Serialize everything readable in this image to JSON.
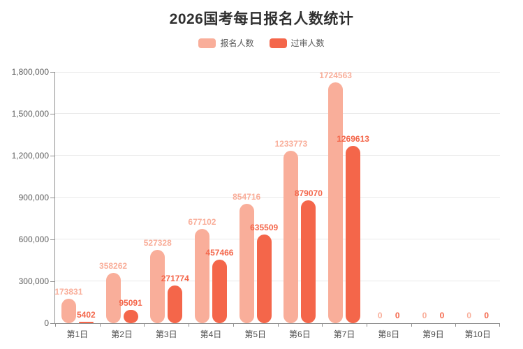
{
  "title": "2026国考每日报名人数统计",
  "colors": {
    "background": "#ffffff",
    "title_text": "#2f2f2f",
    "axis_line": "#909090",
    "grid_line": "#e9e9e9",
    "axis_text": "#5c5c5c",
    "xaxis_text": "#4d4d4d",
    "series_registered": "#f9ae9a",
    "series_approved": "#f4664a"
  },
  "chart_data": {
    "type": "bar",
    "title": "2026国考每日报名人数统计",
    "xlabel": "",
    "ylabel": "",
    "grid": true,
    "legend_position": "top",
    "categories": [
      "第1日",
      "第2日",
      "第3日",
      "第4日",
      "第5日",
      "第6日",
      "第7日",
      "第8日",
      "第9日",
      "第10日"
    ],
    "series": [
      {
        "name": "报名人数",
        "color": "#f9ae9a",
        "values": [
          173831,
          358262,
          527328,
          677102,
          854716,
          1233773,
          1724563,
          0,
          0,
          0
        ]
      },
      {
        "name": "过审人数",
        "color": "#f4664a",
        "values": [
          5402,
          95091,
          271774,
          457466,
          635509,
          879070,
          1269613,
          0,
          0,
          0
        ]
      }
    ],
    "ylim": [
      0,
      1800000
    ],
    "ytick_step": 300000,
    "ytick_labels": [
      "0",
      "300,000",
      "600,000",
      "900,000",
      "1,200,000",
      "1,500,000",
      "1,800,000"
    ]
  }
}
